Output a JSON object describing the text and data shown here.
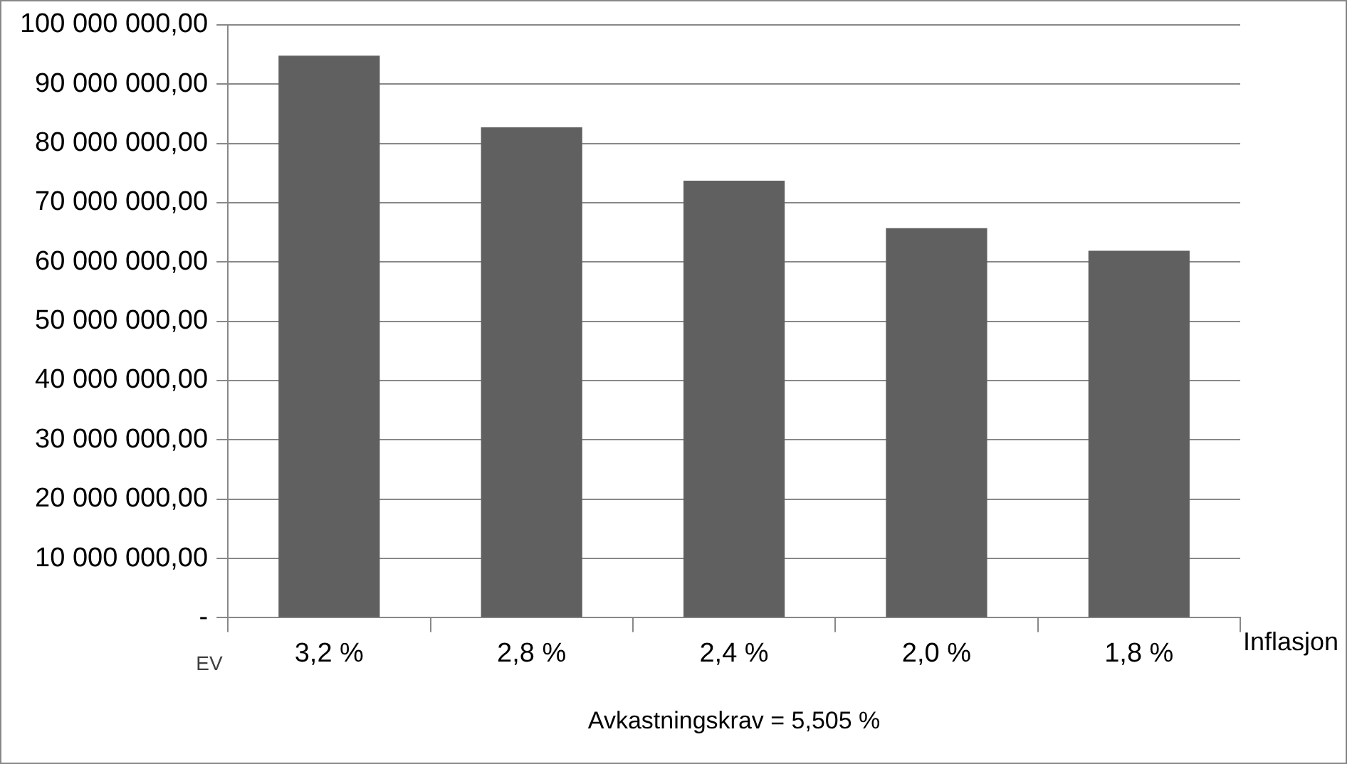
{
  "chart_data": {
    "type": "bar",
    "xlabel": "Inflasjon",
    "ylabel": "EV",
    "annotations": [
      "Avkastningskrav = 5,505 %"
    ],
    "categories": [
      "3,2 %",
      "2,8 %",
      "2,4 %",
      "2,0 %",
      "1,8 %"
    ],
    "values": [
      94800000,
      82700000,
      73700000,
      65700000,
      61900000
    ],
    "color": "#606060",
    "ylim": [
      0,
      100000000
    ],
    "yticks": [
      {
        "value": 0,
        "label": "-"
      },
      {
        "value": 10000000,
        "label": "10 000 000,00"
      },
      {
        "value": 20000000,
        "label": "20 000 000,00"
      },
      {
        "value": 30000000,
        "label": "30 000 000,00"
      },
      {
        "value": 40000000,
        "label": "40 000 000,00"
      },
      {
        "value": 50000000,
        "label": "50 000 000,00"
      },
      {
        "value": 60000000,
        "label": "60 000 000,00"
      },
      {
        "value": 70000000,
        "label": "70 000 000,00"
      },
      {
        "value": 80000000,
        "label": "80 000 000,00"
      },
      {
        "value": 90000000,
        "label": "90 000 000,00"
      },
      {
        "value": 100000000,
        "label": "100 000 000,00"
      }
    ],
    "grid": "y"
  }
}
